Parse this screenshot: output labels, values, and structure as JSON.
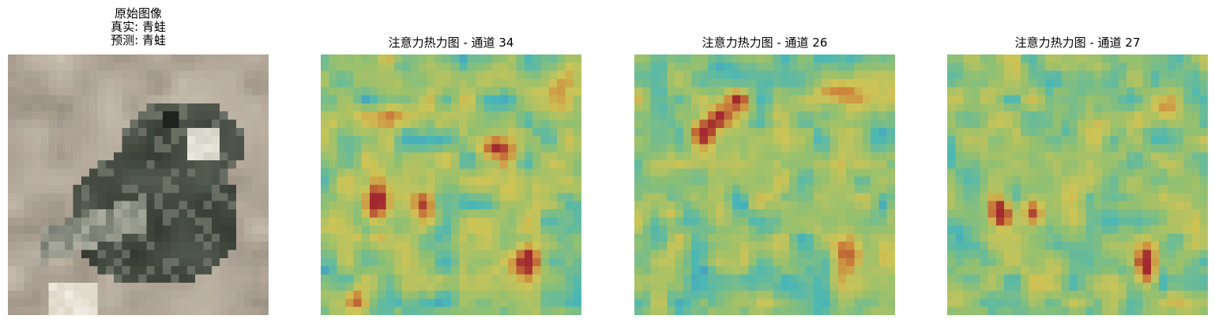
{
  "figure": {
    "panels": [
      {
        "kind": "original",
        "title_lines": [
          "原始图像",
          "真实: 青蛙",
          "预测: 青蛙"
        ]
      },
      {
        "kind": "heatmap",
        "title": "注意力热力图 - 通道 34"
      },
      {
        "kind": "heatmap",
        "title": "注意力热力图 - 通道 26"
      },
      {
        "kind": "heatmap",
        "title": "注意力热力图 - 通道 27"
      }
    ],
    "colors": {
      "background": "#ffffff",
      "colormap": [
        "#1f2bb8",
        "#3b6fd8",
        "#45c8c0",
        "#9ed36a",
        "#e6d84a",
        "#e58a2a",
        "#b01b1b"
      ],
      "frog_palette": [
        "#b8aa97",
        "#9a8f80",
        "#6f7265",
        "#4b5147",
        "#2f332d",
        "#d9d5c8"
      ]
    }
  }
}
